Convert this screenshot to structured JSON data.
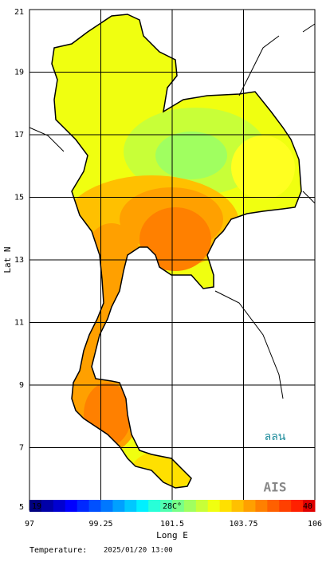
{
  "map": {
    "xlabel": "Long E",
    "ylabel": "Lat N",
    "xlim": [
      97,
      106
    ],
    "ylim": [
      5,
      21
    ],
    "xticks": [
      97,
      99.25,
      101.5,
      103.75,
      106
    ],
    "yticks": [
      5,
      7,
      9,
      11,
      13,
      15,
      17,
      19,
      21
    ],
    "grid": true
  },
  "colorbar": {
    "min_label": "19",
    "mid_label": "28C°",
    "max_label": "40",
    "colors": [
      "#00007f",
      "#0000a8",
      "#0000d0",
      "#0000ff",
      "#0028ff",
      "#0050ff",
      "#0078ff",
      "#00a0ff",
      "#00c8ff",
      "#00f0ff",
      "#28ffd8",
      "#50ffb0",
      "#78ff88",
      "#a0ff60",
      "#c8ff38",
      "#f0ff10",
      "#ffe000",
      "#ffc000",
      "#ffa000",
      "#ff8000",
      "#ff6000",
      "#ff4000",
      "#ff2000",
      "#e00000"
    ]
  },
  "footer": {
    "label": "Temperature:",
    "datetime": "2025/01/20 13:00"
  },
  "logos": [
    "ลลน",
    "AIS"
  ]
}
